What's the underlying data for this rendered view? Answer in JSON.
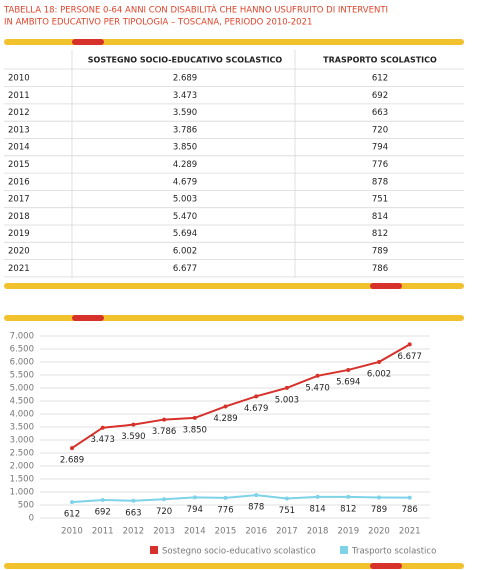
{
  "title_lines": [
    "TABELLA 18: PERSONE 0-64 ANNI CON DISABILITÀ CHE HANNO USUFRUITO DI INTERVENTI",
    "IN AMBITO EDUCATIVO PER TIPOLOGIA – TOSCANA, PERIODO 2010-2021"
  ],
  "table": {
    "headers": [
      "SOSTEGNO SOCIO-EDUCATIVO SCOLASTICO",
      "TRASPORTO SCOLASTICO"
    ],
    "rows": [
      [
        "2010",
        "2.689",
        "612"
      ],
      [
        "2011",
        "3.473",
        "692"
      ],
      [
        "2012",
        "3.590",
        "663"
      ],
      [
        "2013",
        "3.786",
        "720"
      ],
      [
        "2014",
        "3.850",
        "794"
      ],
      [
        "2015",
        "4.289",
        "776"
      ],
      [
        "2016",
        "4.679",
        "878"
      ],
      [
        "2017",
        "5.003",
        "751"
      ],
      [
        "2018",
        "5.470",
        "814"
      ],
      [
        "2019",
        "5.694",
        "812"
      ],
      [
        "2020",
        "6.002",
        "789"
      ],
      [
        "2021",
        "6.677",
        "786"
      ]
    ]
  },
  "chart_data": {
    "type": "line",
    "categories": [
      "2010",
      "2011",
      "2012",
      "2013",
      "2014",
      "2015",
      "2016",
      "2017",
      "2018",
      "2019",
      "2020",
      "2021"
    ],
    "series": [
      {
        "name": "Sostegno socio-educativo scolastico",
        "color": "#d6312b",
        "values": [
          2689,
          3473,
          3590,
          3786,
          3850,
          4289,
          4679,
          5003,
          5470,
          5694,
          6002,
          6677
        ],
        "value_labels": [
          "2.689",
          "3.473",
          "3.590",
          "3.786",
          "3.850",
          "4.289",
          "4.679",
          "5.003",
          "5.470",
          "5.694",
          "6.002",
          "6.677"
        ]
      },
      {
        "name": "Trasporto scolastico",
        "color": "#7fd3e8",
        "values": [
          612,
          692,
          663,
          720,
          794,
          776,
          878,
          751,
          814,
          812,
          789,
          786
        ]
      }
    ],
    "ylim": [
      0,
      7000
    ],
    "yticks": [
      0,
      500,
      {
        "value": 1000,
        "label": "1.000"
      },
      {
        "value": 1500,
        "label": "1.500"
      },
      {
        "value": 2000,
        "label": "2.000"
      },
      {
        "value": 2500,
        "label": "2.500"
      },
      {
        "value": 3000,
        "label": "3.000"
      },
      {
        "value": 3500,
        "label": "3.500"
      },
      {
        "value": 4000,
        "label": "4.000"
      },
      {
        "value": 4500,
        "label": "4.500"
      },
      {
        "value": 5000,
        "label": "5.000"
      },
      {
        "value": 5500,
        "label": "5.500"
      },
      {
        "value": 6000,
        "label": "6.000"
      },
      {
        "value": 6500,
        "label": "6.500"
      },
      {
        "value": 7000,
        "label": "7.000"
      }
    ],
    "grid": true,
    "legend": "bottom"
  }
}
